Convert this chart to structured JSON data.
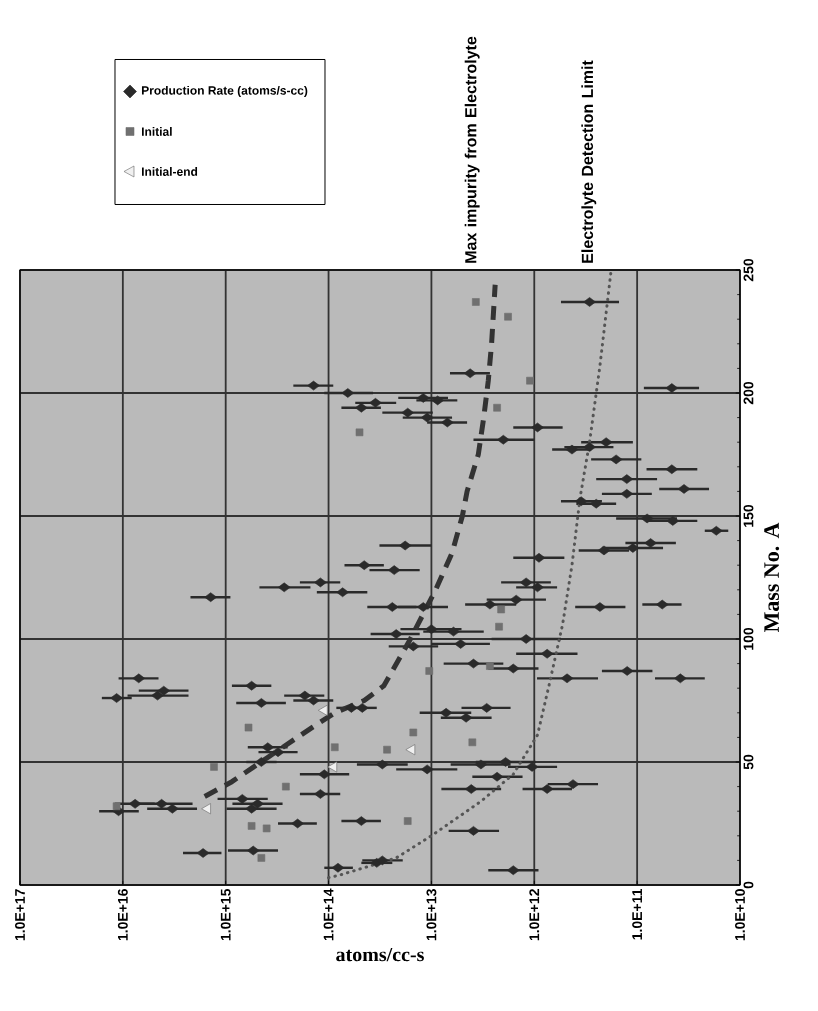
{
  "chart_data": {
    "type": "scatter",
    "xlabel": "atoms/cc-s",
    "ylabel": "Mass No. A",
    "xlim": [
      1e+17,
      10000000000.0
    ],
    "xticks": [
      {
        "value": 1e+17,
        "label": "1.0E+17"
      },
      {
        "value": 1e+16,
        "label": "1.0E+16"
      },
      {
        "value": 1000000000000000.0,
        "label": "1.0E+15"
      },
      {
        "value": 100000000000000.0,
        "label": "1.0E+14"
      },
      {
        "value": 10000000000000.0,
        "label": "1.0E+13"
      },
      {
        "value": 1000000000000.0,
        "label": "1.0E+12"
      },
      {
        "value": 100000000000.0,
        "label": "1.0E+11"
      },
      {
        "value": 10000000000.0,
        "label": "1.0E+10"
      }
    ],
    "ylim": [
      0,
      250
    ],
    "yticks": [
      0,
      50,
      100,
      150,
      200,
      250
    ],
    "log": "x",
    "grid": true,
    "legend": "top left",
    "series": [
      {
        "name": "Production Rate (atoms/s-cc)",
        "marker": "diamond",
        "color": "#2a2a2a",
        "values": [
          237,
          202,
          208,
          198,
          197,
          192,
          190,
          188,
          181,
          186,
          177,
          178,
          180,
          173,
          165,
          169,
          161,
          156,
          155,
          159,
          149,
          148,
          144,
          136,
          137,
          139,
          133,
          203,
          200,
          194,
          196,
          130,
          117,
          121,
          123,
          119,
          84,
          76,
          77,
          79,
          81,
          74,
          77,
          75,
          72,
          72,
          56,
          54,
          50,
          45,
          37,
          33,
          30,
          33,
          31,
          35,
          33,
          31,
          25,
          26,
          13,
          14,
          7,
          9,
          113,
          114,
          116,
          114,
          123,
          121,
          113,
          113,
          102,
          104,
          103,
          97,
          98,
          100,
          94,
          84,
          87,
          84,
          90,
          88,
          70,
          68,
          72,
          49,
          47,
          49,
          50,
          44,
          48,
          39,
          39,
          41,
          22,
          6,
          10,
          138,
          128
        ],
        "x": [
          290000000000.0,
          46000000000.0,
          4200000000000.0,
          12000000000000.0,
          8700000000000.0,
          17000000000000.0,
          11000000000000.0,
          7000000000000.0,
          2000000000000.0,
          930000000000.0,
          430000000000.0,
          290000000000.0,
          200000000000.0,
          160000000000.0,
          126000000000.0,
          46000000000.0,
          35000000000.0,
          350000000000.0,
          250000000000.0,
          126000000000.0,
          80000000000.0,
          45000000000.0,
          17000000000.0,
          210000000000.0,
          110000000000.0,
          74000000000.0,
          900000000000.0,
          140000000000000.0,
          65000000000000.0,
          48000000000000.0,
          35000000000000.0,
          45000000000000.0,
          1400000000000000.0,
          270000000000000.0,
          120000000000000.0,
          73000000000000.0,
          7000000000000000.0,
          1.15e+16,
          4600000000000000.0,
          4000000000000000.0,
          560000000000000.0,
          450000000000000.0,
          170000000000000.0,
          140000000000000.0,
          60000000000000.0,
          47000000000000.0,
          390000000000000.0,
          310000000000000.0,
          450000000000000.0,
          110000000000000.0,
          120000000000000.0,
          7600000000000000.0,
          1.1e+16,
          4200000000000000.0,
          3300000000000000.0,
          690000000000000.0,
          490000000000000.0,
          560000000000000.0,
          200000000000000.0,
          48000000000000.0,
          1660000000000000.0,
          540000000000000.0,
          81000000000000.0,
          34000000000000.0,
          230000000000.0,
          57000000000.0,
          1500000000000.0,
          2700000000000.0,
          1200000000000.0,
          930000000000.0,
          24000000000000.0,
          12000000000000.0,
          22000000000000.0,
          10000000000000.0,
          6100000000000.0,
          15000000000000.0,
          5200000000000.0,
          1200000000000.0,
          750000000000.0,
          480000000000.0,
          125000000000.0,
          38000000000.0,
          3900000000000.0,
          1600000000000.0,
          7200000000000.0,
          4600000000000.0,
          2900000000000.0,
          30000000000000.0,
          11000000000000.0,
          3300000000000.0,
          1900000000000.0,
          2300000000000.0,
          1050000000000.0,
          4100000000000.0,
          750000000000.0,
          420000000000.0,
          3900000000000.0,
          1600000000000.0,
          30000000000000.0,
          18000000000000.0,
          23000000000000.0
        ],
        "xerrors": [
          [
            150000000000.0,
            550000000000.0
          ],
          [
            25000000000.0,
            86000000000.0
          ],
          [
            2700000000000.0,
            6600000000000.0
          ],
          [
            6900000000000.0,
            21000000000000.0
          ],
          [
            5600000000000.0,
            14000000000000.0
          ],
          [
            9700000000000.0,
            30000000000000.0
          ],
          [
            6300000000000.0,
            19000000000000.0
          ],
          [
            4500000000000.0,
            11000000000000.0
          ],
          [
            1000000000000.0,
            3900000000000.0
          ],
          [
            530000000000.0,
            1600000000000.0
          ],
          [
            280000000000.0,
            670000000000.0
          ],
          [
            170000000000.0,
            510000000000.0
          ],
          [
            110000000000.0,
            350000000000.0
          ],
          [
            91000000000.0,
            280000000000.0
          ],
          [
            64000000000.0,
            250000000000.0
          ],
          [
            26000000000.0,
            81000000000.0
          ],
          [
            20000000000.0,
            61000000000.0
          ],
          [
            220000000000.0,
            550000000000.0
          ],
          [
            160000000000.0,
            390000000000.0
          ],
          [
            72000000000.0,
            220000000000.0
          ],
          [
            41000000000.0,
            160000000000.0
          ],
          [
            26000000000.0,
            79000000000.0
          ],
          [
            13000000000.0,
            22000000000.0
          ],
          [
            120000000000.0,
            370000000000.0
          ],
          [
            56000000000.0,
            220000000000.0
          ],
          [
            42000000000.0,
            130000000000.0
          ],
          [
            510000000000.0,
            1600000000000.0
          ],
          [
            90000000000000.0,
            220000000000000.0
          ],
          [
            37000000000000.0,
            110000000000000.0
          ],
          [
            31000000000000.0,
            75000000000000.0
          ],
          [
            22000000000000.0,
            55000000000000.0
          ],
          [
            29000000000000.0,
            70000000000000.0
          ],
          [
            900000000000000.0,
            2200000000000000.0
          ],
          [
            150000000000000.0,
            470000000000000.0
          ],
          [
            77000000000000.0,
            190000000000000.0
          ],
          [
            42000000000000.0,
            130000000000000.0
          ],
          [
            4500000000000000.0,
            1.1e+16
          ],
          [
            8200000000000000.0,
            1.6e+16
          ],
          [
            2300000000000000.0,
            9000000000000000.0
          ],
          [
            2300000000000000.0,
            7000000000000000.0
          ],
          [
            360000000000000.0,
            870000000000000.0
          ],
          [
            260000000000000.0,
            790000000000000.0
          ],
          [
            110000000000000.0,
            270000000000000.0
          ],
          [
            90000000000000.0,
            220000000000000.0
          ],
          [
            43000000000000.0,
            84000000000000.0
          ],
          [
            34000000000000.0,
            66000000000000.0
          ],
          [
            250000000000000.0,
            610000000000000.0
          ],
          [
            200000000000000.0,
            480000000000000.0
          ],
          [
            320000000000000.0,
            630000000000000.0
          ],
          [
            63000000000000.0,
            190000000000000.0
          ],
          [
            77000000000000.0,
            190000000000000.0
          ],
          [
            4900000000000000.0,
            1.2e+16
          ],
          [
            7000000000000000.0,
            1.7e+16
          ],
          [
            2100000000000000.0,
            8200000000000000.0
          ],
          [
            1900000000000000.0,
            5800000000000000.0
          ],
          [
            390000000000000.0,
            1200000000000000.0
          ],
          [
            280000000000000.0,
            860000000000000.0
          ],
          [
            320000000000000.0,
            980000000000000.0
          ],
          [
            130000000000000.0,
            310000000000000.0
          ],
          [
            31000000000000.0,
            75000000000000.0
          ],
          [
            1100000000000000.0,
            2600000000000000.0
          ],
          [
            310000000000000.0,
            950000000000000.0
          ],
          [
            58000000000000.0,
            110000000000000.0
          ],
          [
            24000000000000.0,
            48000000000000.0
          ],
          [
            130000000000.0,
            400000000000.0
          ],
          [
            37000000000.0,
            89000000000.0
          ],
          [
            770000000000.0,
            2900000000000.0
          ],
          [
            1500000000000.0,
            4700000000000.0
          ],
          [
            690000000000.0,
            2100000000000.0
          ],
          [
            600000000000.0,
            1500000000000.0
          ],
          [
            14000000000000.0,
            42000000000000.0
          ],
          [
            6900000000000.0,
            21000000000000.0
          ],
          [
            13000000000000.0,
            39000000000000.0
          ],
          [
            5100000000000.0,
            20000000000000.0
          ],
          [
            3100000000000.0,
            12000000000000.0
          ],
          [
            8600000000000.0,
            26000000000000.0
          ],
          [
            2700000000000.0,
            10000000000000.0
          ],
          [
            550000000000.0,
            2600000000000.0
          ],
          [
            380000000000.0,
            1500000000000.0
          ],
          [
            240000000000.0,
            940000000000.0
          ],
          [
            71000000000.0,
            220000000000.0
          ],
          [
            22000000000.0,
            67000000000.0
          ],
          [
            2000000000000.0,
            7600000000000.0
          ],
          [
            910000000000.0,
            2800000000000.0
          ],
          [
            4100000000000.0,
            13000000000000.0
          ],
          [
            2600000000000.0,
            8100000000000.0
          ],
          [
            1700000000000.0,
            5100000000000.0
          ],
          [
            17000000000000.0,
            53000000000000.0
          ],
          [
            5600000000000.0,
            22000000000000.0
          ],
          [
            1700000000000.0,
            6500000000000.0
          ],
          [
            970000000000.0,
            3700000000000.0
          ],
          [
            1300000000000.0,
            4000000000000.0
          ],
          [
            600000000000.0,
            1800000000000.0
          ],
          [
            2100000000000.0,
            8000000000000.0
          ],
          [
            430000000000.0,
            1300000000000.0
          ],
          [
            240000000000.0,
            740000000000.0
          ],
          [
            2200000000000.0,
            6800000000000.0
          ],
          [
            910000000000.0,
            2800000000000.0
          ],
          [
            19000000000000.0,
            47000000000000.0
          ],
          [
            10000000000000.0,
            32000000000000.0
          ],
          [
            13000000000000.0,
            40000000000000.0
          ]
        ]
      },
      {
        "name": "Initial",
        "marker": "square",
        "color": "#707070",
        "values": [
          237,
          231,
          205,
          194,
          184,
          112,
          105,
          87,
          89,
          62,
          55,
          58,
          26,
          48,
          64,
          40,
          24,
          23,
          11,
          32,
          56
        ],
        "x": [
          3700000000000.0,
          1800000000000.0,
          1100000000000.0,
          2300000000000.0,
          50000000000000.0,
          2100000000000.0,
          2200000000000.0,
          10500000000000.0,
          2700000000000.0,
          15000000000000.0,
          27000000000000.0,
          4000000000000.0,
          17000000000000.0,
          1300000000000000.0,
          600000000000000.0,
          260000000000000.0,
          560000000000000.0,
          400000000000000.0,
          450000000000000.0,
          1.15e+16,
          87000000000000.0
        ]
      },
      {
        "name": "Initial-end",
        "marker": "triangle",
        "color": "#f0f0f0",
        "values": [
          31,
          48,
          71,
          55
        ],
        "x": [
          1500000000000000.0,
          89000000000000.0,
          110000000000000.0,
          15500000000000.0
        ]
      },
      {
        "type": "line",
        "line_style": "dashed",
        "color": "#333333",
        "values": [
          36,
          42,
          64,
          70,
          75,
          81,
          100,
          120,
          135,
          150,
          160,
          175,
          190,
          205,
          220,
          244
        ],
        "x": [
          1600000000000000.0,
          870000000000000.0,
          145000000000000.0,
          87000000000000.0,
          45000000000000.0,
          29000000000000.0,
          16000000000000.0,
          9100000000000.0,
          6300000000000.0,
          5000000000000.0,
          4500000000000.0,
          3500000000000.0,
          3100000000000.0,
          2800000000000.0,
          2600000000000.0,
          2400000000000.0
        ]
      },
      {
        "type": "line",
        "line_style": "dotted",
        "color": "#555555",
        "values": [
          3,
          4,
          11,
          20,
          34,
          45,
          61,
          81,
          106,
          130,
          157,
          180,
          211,
          249
        ],
        "x": [
          100000000000000.0,
          78000000000000.0,
          22000000000000.0,
          10000000000000.0,
          3300000000000.0,
          1600000000000.0,
          930000000000.0,
          720000000000.0,
          530000000000.0,
          430000000000.0,
          360000000000.0,
          290000000000.0,
          230000000000.0,
          180000000000.0
        ]
      }
    ],
    "annotations": [
      "Max impurity from Electrolyte",
      "Electrolyte Detection Limit"
    ]
  }
}
